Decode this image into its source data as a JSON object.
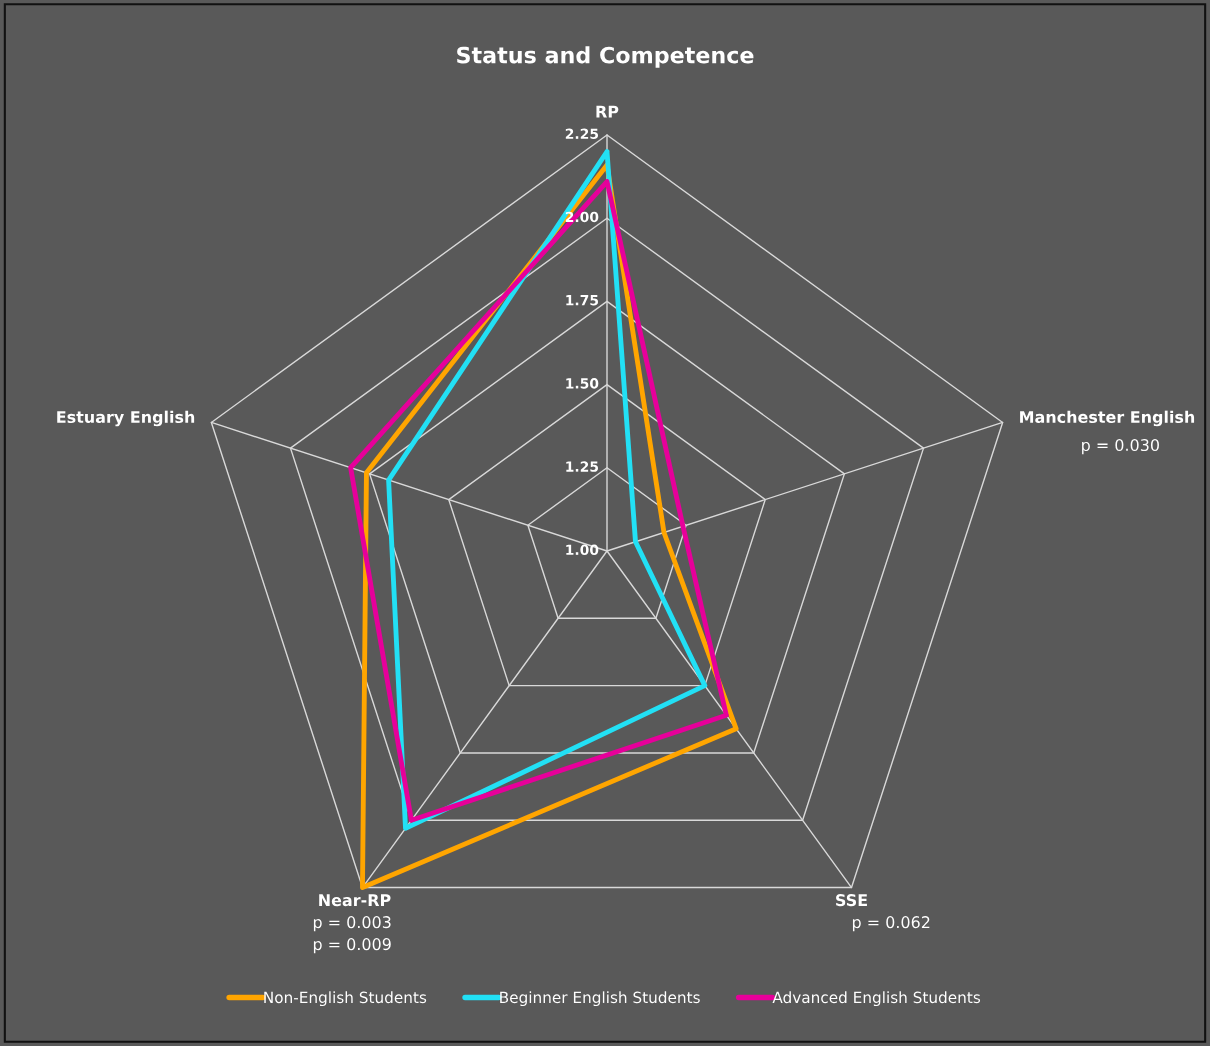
{
  "chart_data": {
    "type": "radar",
    "title": "Status and Competence",
    "categories": [
      "RP",
      "Manchester English",
      "SSE",
      "Near-RP",
      "Estuary English"
    ],
    "ylim": [
      1.0,
      2.25
    ],
    "yticks": [
      {
        "value": 1.0,
        "label": "1.00"
      },
      {
        "value": 1.25,
        "label": "1.25"
      },
      {
        "value": 1.5,
        "label": "1.50"
      },
      {
        "value": 1.75,
        "label": "1.75"
      },
      {
        "value": 2.0,
        "label": "2.00"
      },
      {
        "value": 2.25,
        "label": "2.25"
      }
    ],
    "grid": true,
    "legend": "bottom",
    "line_style": "solid",
    "marker": "none",
    "series": [
      {
        "name": "Non-English Students",
        "color": "#ffa500",
        "values": [
          2.16,
          1.18,
          1.66,
          2.25,
          1.76
        ]
      },
      {
        "name": "Beginner English Students",
        "color": "#22e0f5",
        "values": [
          2.2,
          1.09,
          1.5,
          2.03,
          1.69
        ]
      },
      {
        "name": "Advanced English Students",
        "color": "#e6009a",
        "values": [
          2.11,
          1.24,
          1.61,
          2.0,
          1.81
        ]
      }
    ],
    "annotations": [
      {
        "text": "p = 0.030",
        "x": "Manchester English"
      },
      {
        "text": "p = 0.062",
        "x": "SSE"
      },
      {
        "text": "p = 0.003",
        "x": "Near-RP"
      },
      {
        "text": "p = 0.009",
        "x": "Near-RP"
      }
    ]
  }
}
